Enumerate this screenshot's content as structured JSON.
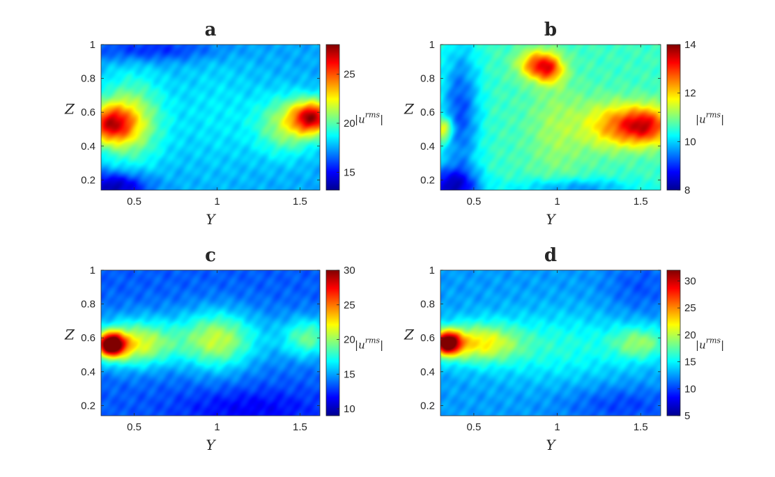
{
  "chart_data": [
    {
      "type": "heatmap",
      "title": "a",
      "xlabel": "Y",
      "ylabel": "Z",
      "xlim": [
        0.3,
        1.62
      ],
      "ylim": [
        0.14,
        1.0
      ],
      "xticks": [
        0.5,
        1,
        1.5
      ],
      "xtick_labels": [
        "0.5",
        "1",
        "1.5"
      ],
      "yticks": [
        0.2,
        0.4,
        0.6,
        0.8,
        1.0
      ],
      "ytick_labels": [
        "0.2",
        "0.4",
        "0.6",
        "0.8",
        "1"
      ],
      "colorbar": {
        "label": "|u^{rms}|",
        "range": [
          13.2,
          28
        ],
        "ticks": [
          15,
          20,
          25
        ],
        "tick_labels": [
          "15",
          "20",
          "25"
        ]
      },
      "background": 17.5,
      "features": [
        {
          "y": 0.35,
          "z": 0.53,
          "value": 24.5,
          "sy": 0.1,
          "sz": 0.08
        },
        {
          "y": 0.48,
          "z": 0.55,
          "value": 21.5,
          "sy": 0.14,
          "sz": 0.18
        },
        {
          "y": 1.58,
          "z": 0.57,
          "value": 26.0,
          "sy": 0.09,
          "sz": 0.07
        },
        {
          "y": 1.42,
          "z": 0.52,
          "value": 21.0,
          "sy": 0.13,
          "sz": 0.12
        },
        {
          "y": 0.38,
          "z": 0.16,
          "value": 13.5,
          "sy": 0.14,
          "sz": 0.06
        },
        {
          "y": 1.0,
          "z": 0.6,
          "value": 18.5,
          "sy": 0.2,
          "sz": 0.25
        },
        {
          "y": 0.6,
          "z": 0.97,
          "value": 15.5,
          "sy": 0.3,
          "sz": 0.05
        }
      ]
    },
    {
      "type": "heatmap",
      "title": "b",
      "xlabel": "Y",
      "ylabel": "Z",
      "xlim": [
        0.3,
        1.62
      ],
      "ylim": [
        0.14,
        1.0
      ],
      "xticks": [
        0.5,
        1,
        1.5
      ],
      "xtick_labels": [
        "0.5",
        "1",
        "1.5"
      ],
      "yticks": [
        0.2,
        0.4,
        0.6,
        0.8,
        1.0
      ],
      "ytick_labels": [
        "0.2",
        "0.4",
        "0.6",
        "0.8",
        "1"
      ],
      "colorbar": {
        "label": "|u^{rms}|",
        "range": [
          8,
          14
        ],
        "ticks": [
          8,
          10,
          12,
          14
        ],
        "tick_labels": [
          "8",
          "10",
          "12",
          "14"
        ]
      },
      "background": 10.6,
      "features": [
        {
          "y": 0.88,
          "z": 0.88,
          "value": 12.6,
          "sy": 0.08,
          "sz": 0.06
        },
        {
          "y": 0.96,
          "z": 0.85,
          "value": 12.0,
          "sy": 0.06,
          "sz": 0.06
        },
        {
          "y": 1.52,
          "z": 0.52,
          "value": 13.4,
          "sy": 0.12,
          "sz": 0.08
        },
        {
          "y": 1.3,
          "z": 0.52,
          "value": 11.8,
          "sy": 0.12,
          "sz": 0.1
        },
        {
          "y": 0.32,
          "z": 0.5,
          "value": 12.2,
          "sy": 0.04,
          "sz": 0.05
        },
        {
          "y": 0.42,
          "z": 0.6,
          "value": 9.2,
          "sy": 0.08,
          "sz": 0.28
        },
        {
          "y": 0.36,
          "z": 0.16,
          "value": 8.6,
          "sy": 0.12,
          "sz": 0.08
        },
        {
          "y": 1.1,
          "z": 0.15,
          "value": 9.6,
          "sy": 0.25,
          "sz": 0.04
        },
        {
          "y": 1.0,
          "z": 0.5,
          "value": 11.2,
          "sy": 0.12,
          "sz": 0.2
        }
      ]
    },
    {
      "type": "heatmap",
      "title": "c",
      "xlabel": "Y",
      "ylabel": "Z",
      "xlim": [
        0.3,
        1.62
      ],
      "ylim": [
        0.14,
        1.0
      ],
      "xticks": [
        0.5,
        1,
        1.5
      ],
      "xtick_labels": [
        "0.5",
        "1",
        "1.5"
      ],
      "yticks": [
        0.2,
        0.4,
        0.6,
        0.8,
        1.0
      ],
      "ytick_labels": [
        "0.2",
        "0.4",
        "0.6",
        "0.8",
        "1"
      ],
      "colorbar": {
        "label": "|u^{rms}|",
        "range": [
          9,
          30
        ],
        "ticks": [
          10,
          15,
          20,
          25,
          30
        ],
        "tick_labels": [
          "10",
          "15",
          "20",
          "25",
          "30"
        ]
      },
      "background": 13.5,
      "features": [
        {
          "y": 0.36,
          "z": 0.56,
          "value": 29.0,
          "sy": 0.06,
          "sz": 0.05
        },
        {
          "y": 0.5,
          "z": 0.56,
          "value": 20.0,
          "sy": 0.16,
          "sz": 0.09
        },
        {
          "y": 1.0,
          "z": 0.58,
          "value": 18.5,
          "sy": 0.14,
          "sz": 0.12
        },
        {
          "y": 1.55,
          "z": 0.6,
          "value": 18.0,
          "sy": 0.1,
          "sz": 0.08
        },
        {
          "y": 0.9,
          "z": 0.6,
          "value": 16.0,
          "sy": 0.5,
          "sz": 0.12
        },
        {
          "y": 1.2,
          "z": 0.18,
          "value": 11.5,
          "sy": 0.3,
          "sz": 0.08
        }
      ]
    },
    {
      "type": "heatmap",
      "title": "d",
      "xlabel": "Y",
      "ylabel": "Z",
      "xlim": [
        0.3,
        1.62
      ],
      "ylim": [
        0.14,
        1.0
      ],
      "xticks": [
        0.5,
        1,
        1.5
      ],
      "xtick_labels": [
        "0.5",
        "1",
        "1.5"
      ],
      "yticks": [
        0.2,
        0.4,
        0.6,
        0.8,
        1.0
      ],
      "ytick_labels": [
        "0.2",
        "0.4",
        "0.6",
        "0.8",
        "1"
      ],
      "colorbar": {
        "label": "|u^{rms}|",
        "range": [
          5,
          32
        ],
        "ticks": [
          5,
          10,
          15,
          20,
          25,
          30
        ],
        "tick_labels": [
          "5",
          "10",
          "15",
          "20",
          "25",
          "30"
        ]
      },
      "background": 12.5,
      "features": [
        {
          "y": 0.34,
          "z": 0.57,
          "value": 31.0,
          "sy": 0.06,
          "sz": 0.05
        },
        {
          "y": 0.52,
          "z": 0.57,
          "value": 21.0,
          "sy": 0.17,
          "sz": 0.08
        },
        {
          "y": 1.5,
          "z": 0.57,
          "value": 18.0,
          "sy": 0.12,
          "sz": 0.07
        },
        {
          "y": 1.0,
          "z": 0.55,
          "value": 16.0,
          "sy": 0.35,
          "sz": 0.14
        },
        {
          "y": 1.4,
          "z": 0.2,
          "value": 10.0,
          "sy": 0.25,
          "sz": 0.08
        },
        {
          "y": 1.5,
          "z": 0.9,
          "value": 10.5,
          "sy": 0.15,
          "sz": 0.12
        }
      ]
    }
  ]
}
